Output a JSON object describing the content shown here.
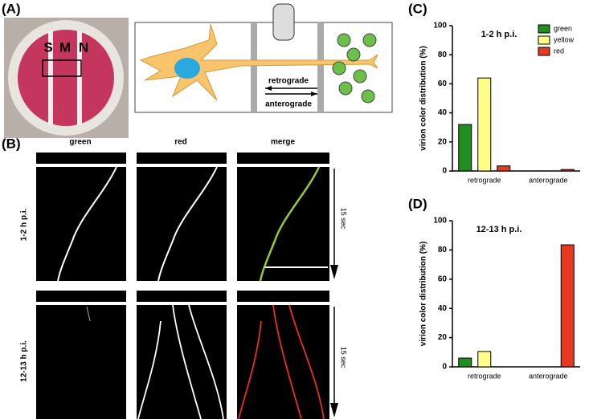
{
  "figure": {
    "panels": [
      "(A)",
      "(B)",
      "(C)",
      "(D)"
    ],
    "dish_labels": [
      "S",
      "M",
      "N"
    ],
    "diagram": {
      "retro": "retrograde",
      "antero": "anterograde"
    },
    "columns": [
      "green",
      "red",
      "merge"
    ],
    "rows": [
      "1-2 h p.i.",
      "12-13 h p.i."
    ],
    "time": [
      "15 sec",
      "15 sec"
    ]
  },
  "chart_data": [
    {
      "type": "bar",
      "title": "1-2 h p.i.",
      "y_label": "virion color distribution (%)",
      "categories": [
        "retrograde",
        "anterograde"
      ],
      "series": [
        {
          "name": "green",
          "color": "#1f8f1f",
          "values": [
            32,
            0
          ]
        },
        {
          "name": "yellow",
          "color": "#ffff88",
          "values": [
            64,
            0
          ]
        },
        {
          "name": "red",
          "color": "#e8381e",
          "values": [
            3.5,
            1
          ]
        }
      ],
      "ylim": [
        0,
        100
      ],
      "yticks": [
        0,
        20,
        40,
        60,
        80,
        100
      ],
      "legend": "top-right"
    },
    {
      "type": "bar",
      "title": "12-13 h p.i.",
      "y_label": "virion color distribution (%)",
      "categories": [
        "retrograde",
        "anterograde"
      ],
      "series": [
        {
          "name": "green",
          "color": "#1f8f1f",
          "values": [
            6,
            0
          ]
        },
        {
          "name": "yellow",
          "color": "#ffff88",
          "values": [
            10.5,
            0
          ]
        },
        {
          "name": "red",
          "color": "#e8381e",
          "values": [
            0,
            83.5
          ]
        }
      ],
      "ylim": [
        0,
        100
      ],
      "yticks": [
        0,
        20,
        40,
        60,
        80,
        100
      ],
      "legend": "none"
    }
  ]
}
